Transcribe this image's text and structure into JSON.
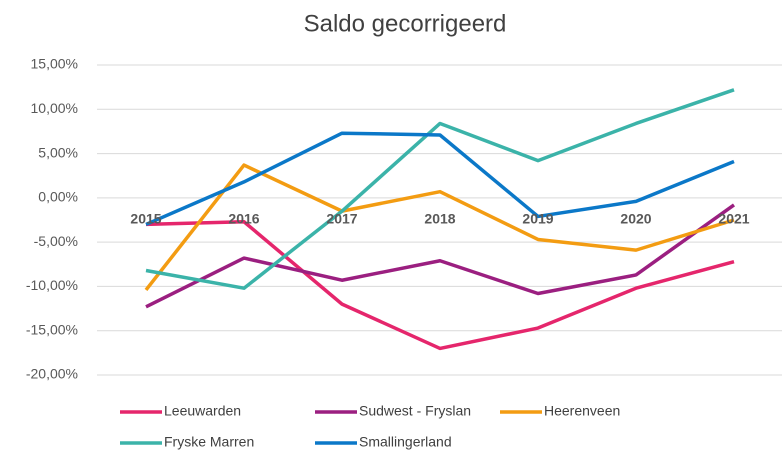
{
  "chart_data": {
    "type": "line",
    "title": "Saldo gecorrigeerd",
    "categories": [
      "2015",
      "2016",
      "2017",
      "2018",
      "2019",
      "2020",
      "2021"
    ],
    "ylim": [
      -20,
      15
    ],
    "yticks": [
      {
        "value": -20,
        "label": "-20,00%"
      },
      {
        "value": -15,
        "label": "-15,00%"
      },
      {
        "value": -10,
        "label": "-10,00%"
      },
      {
        "value": -5,
        "label": "-5,00%"
      },
      {
        "value": 0,
        "label": "0,00%"
      },
      {
        "value": 5,
        "label": "5,00%"
      },
      {
        "value": 10,
        "label": "10,00%"
      },
      {
        "value": 15,
        "label": "15,00%"
      }
    ],
    "grid": true,
    "legend": "bottom",
    "series": [
      {
        "name": "Leeuwarden",
        "color": "#e5266c",
        "values": [
          -3.0,
          -2.7,
          -12.0,
          -17.0,
          -14.7,
          -10.2,
          -7.2
        ]
      },
      {
        "name": "Sudwest - Fryslan",
        "color": "#9b1f80",
        "values": [
          -12.3,
          -6.8,
          -9.3,
          -7.1,
          -10.8,
          -8.7,
          -0.8
        ]
      },
      {
        "name": "Heerenveen",
        "color": "#f39c12",
        "values": [
          -10.4,
          3.7,
          -1.5,
          0.7,
          -4.7,
          -5.9,
          -2.5
        ]
      },
      {
        "name": "Fryske Marren",
        "color": "#3bb3a9",
        "values": [
          -8.2,
          -10.2,
          -1.5,
          8.4,
          4.2,
          8.4,
          12.2
        ]
      },
      {
        "name": "Smallingerland",
        "color": "#0b78c8",
        "values": [
          -3.0,
          1.8,
          7.3,
          7.1,
          -2.1,
          -0.4,
          4.1
        ]
      }
    ]
  }
}
